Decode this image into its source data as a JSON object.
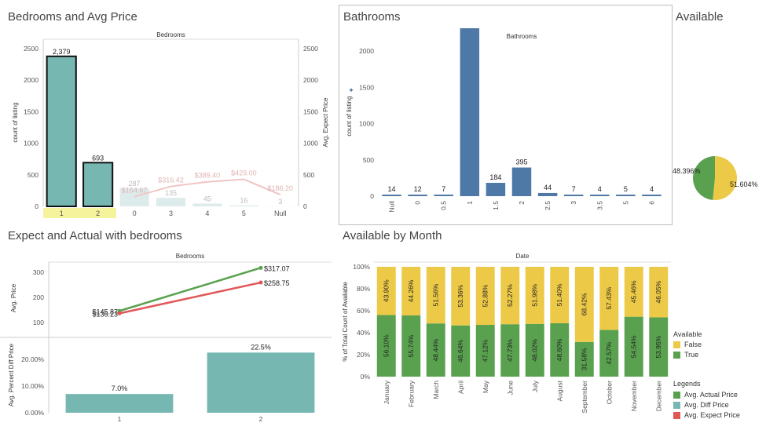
{
  "titles": {
    "bedrooms": "Bedrooms and Avg Price",
    "bathrooms": "Bathrooms",
    "available": "Available",
    "expect_actual": "Expect and Actual with bedrooms",
    "by_month": "Available by Month"
  },
  "colors": {
    "teal": "#76b7b2",
    "blue": "#4e79a7",
    "green": "#59a14f",
    "yellow": "#edc948",
    "red": "#e15759",
    "highlight": "#f5f39b"
  },
  "chart_data": [
    {
      "id": "bedrooms",
      "type": "bar",
      "header": "Bedrooms",
      "categories": [
        "1",
        "2",
        "0",
        "3",
        "4",
        "5",
        "Null"
      ],
      "values": [
        2379,
        693,
        287,
        135,
        45,
        16,
        3
      ],
      "value_labels": [
        "2,379",
        "693",
        "287",
        "135",
        "45",
        "16",
        "3"
      ],
      "line_values": [
        null,
        null,
        154.67,
        316.42,
        389.4,
        429.0,
        186.2
      ],
      "line_labels": [
        "",
        "",
        "$154.67",
        "$316.42",
        "$389.40",
        "$429.00",
        "$186.20"
      ],
      "ylabel": "count of listing",
      "ylabel2": "Avg. Expect Price",
      "yticks": [
        "0",
        "500",
        "1000",
        "1500",
        "2000",
        "2500"
      ],
      "ylim": [
        0,
        2650
      ],
      "selected": [
        "1",
        "2"
      ]
    },
    {
      "id": "bathrooms",
      "type": "bar",
      "header": "Bathrooms",
      "categories": [
        "Null",
        "0",
        "0.5",
        "1",
        "1.5",
        "2",
        "2.5",
        "3",
        "3.5",
        "5",
        "6"
      ],
      "values": [
        14,
        12,
        7,
        2396,
        184,
        395,
        44,
        7,
        4,
        5,
        4
      ],
      "value_labels": [
        "14",
        "12",
        "7",
        "2,396",
        "184",
        "395",
        "44",
        "7",
        "4",
        "5",
        "4"
      ],
      "ylabel": "count of listing",
      "yticks": [
        "0",
        "500",
        "1000",
        "1500",
        "2000"
      ],
      "ylim": [
        0,
        2100
      ]
    },
    {
      "id": "available",
      "type": "pie",
      "labels": [
        "False",
        "True"
      ],
      "values": [
        51.604,
        48.396
      ],
      "value_labels": [
        "51.604%",
        "48.396%"
      ]
    },
    {
      "id": "expect_actual",
      "type": "line",
      "header": "Bedrooms",
      "categories": [
        "1",
        "2"
      ],
      "series": [
        {
          "name": "Avg. Actual Price",
          "values": [
            145.87,
            317.07
          ],
          "labels": [
            "$145.87",
            "$317.07"
          ]
        },
        {
          "name": "Avg. Expect Price",
          "values": [
            136.23,
            258.75
          ],
          "labels": [
            "$136.23",
            "$258.75"
          ]
        }
      ],
      "ylabel": "Avg. Price",
      "yticks": [
        "100",
        "200",
        "300"
      ],
      "ylim": [
        50,
        340
      ],
      "bottom": {
        "type": "bar",
        "ylabel": "Avg. Percent Diff Price",
        "values": [
          7.0,
          22.5
        ],
        "value_labels": [
          "7.0%",
          "22.5%"
        ],
        "yticks": [
          "0.00%",
          "10.00%",
          "20.00%"
        ],
        "ylim": [
          0,
          27
        ]
      }
    },
    {
      "id": "by_month",
      "type": "bar",
      "stacked": true,
      "header": "Date",
      "categories": [
        "January",
        "February",
        "March",
        "April",
        "May",
        "June",
        "July",
        "August",
        "September",
        "October",
        "November",
        "December"
      ],
      "series": [
        {
          "name": "True",
          "values": [
            56.1,
            55.74,
            48.44,
            46.64,
            47.12,
            47.73,
            48.02,
            48.6,
            31.58,
            42.57,
            54.54,
            53.95
          ],
          "labels": [
            "56.10%",
            "55.74%",
            "48.44%",
            "46.64%",
            "47.12%",
            "47.73%",
            "48.02%",
            "48.60%",
            "31.58%",
            "42.57%",
            "54.54%",
            "53.95%"
          ]
        },
        {
          "name": "False",
          "values": [
            43.9,
            44.26,
            51.56,
            53.36,
            52.88,
            52.27,
            51.98,
            51.4,
            68.42,
            57.43,
            45.46,
            46.05
          ],
          "labels": [
            "43.90%",
            "44.26%",
            "51.56%",
            "53.36%",
            "52.88%",
            "52.27%",
            "51.98%",
            "51.40%",
            "68.42%",
            "57.43%",
            "45.46%",
            "46.05%"
          ]
        }
      ],
      "ylabel": "% of Total Count of Available",
      "yticks": [
        "0%",
        "20%",
        "40%",
        "60%",
        "80%",
        "100%"
      ],
      "ylim": [
        0,
        100
      ]
    }
  ],
  "legend_available": {
    "title": "Available",
    "items": [
      "False",
      "True"
    ]
  },
  "legend_legends": {
    "title": "Legends",
    "items": [
      "Avg. Actual Price",
      "Avg. Diff Price",
      "Avg. Expect Price"
    ]
  }
}
